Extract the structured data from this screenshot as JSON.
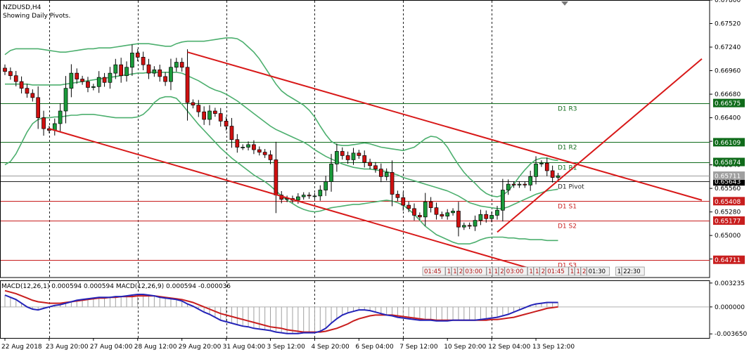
{
  "chart_data": {
    "type": "candlestick",
    "symbol_label": "NZDUSD,H4",
    "subtitle": "Showing Daily Pivots.",
    "price_axis": {
      "range": [
        0.645,
        0.678
      ],
      "ticks": [
        "0.67800",
        "0.67520",
        "0.67240",
        "0.66960",
        "0.66680",
        "0.66400",
        "0.66120",
        "0.65840",
        "0.65560",
        "0.65280",
        "0.65000",
        "0.64720"
      ],
      "tick_values": [
        0.678,
        0.6752,
        0.6724,
        0.6696,
        0.6668,
        0.664,
        0.6612,
        0.6584,
        0.6556,
        0.6528,
        0.65,
        0.6472
      ]
    },
    "time_axis": {
      "labels": [
        "22 Aug 2018",
        "23 Aug 20:00",
        "27 Aug 04:00",
        "28 Aug 12:00",
        "29 Aug 20:00",
        "31 Aug 04:00",
        "3 Sep 12:00",
        "4 Sep 20:00",
        "6 Sep 04:00",
        "7 Sep 12:00",
        "10 Sep 20:00",
        "12 Sep 04:00",
        "13 Sep 12:00"
      ],
      "bar_index": [
        0,
        8,
        16,
        24,
        32,
        40,
        48,
        56,
        64,
        72,
        80,
        88,
        96
      ]
    },
    "pivots": [
      {
        "name": "D1 R3",
        "value": 0.66575,
        "label": "0.66575",
        "kind": "resistance"
      },
      {
        "name": "D1 R2",
        "value": 0.66109,
        "label": "0.66109",
        "kind": "resistance"
      },
      {
        "name": "D1 R1",
        "value": 0.65874,
        "label": "0.65874",
        "kind": "resistance"
      },
      {
        "name": "D1 Pivot",
        "value": 0.65643,
        "label": "0.65643",
        "kind": "pivot"
      },
      {
        "name": "D1 S1",
        "value": 0.65408,
        "label": "0.65408",
        "kind": "support"
      },
      {
        "name": "D1 S2",
        "value": 0.65177,
        "label": "0.65177",
        "kind": "support"
      },
      {
        "name": "D1 S3",
        "value": 0.64711,
        "label": "0.64711",
        "kind": "support"
      }
    ],
    "current_price_label": "0.65711",
    "current_price": 0.65711,
    "close": [
      0.6695,
      0.669,
      0.6683,
      0.6675,
      0.6669,
      0.6664,
      0.664,
      0.6627,
      0.6625,
      0.6633,
      0.6648,
      0.6675,
      0.6693,
      0.6686,
      0.6683,
      0.6676,
      0.6677,
      0.6688,
      0.6682,
      0.6693,
      0.6703,
      0.669,
      0.67,
      0.6717,
      0.6712,
      0.6703,
      0.6693,
      0.6697,
      0.6689,
      0.6683,
      0.67,
      0.6706,
      0.67,
      0.6658,
      0.6655,
      0.6647,
      0.6638,
      0.6648,
      0.6645,
      0.6636,
      0.663,
      0.6614,
      0.6605,
      0.6605,
      0.6608,
      0.6602,
      0.6599,
      0.6596,
      0.659,
      0.6548,
      0.6543,
      0.6544,
      0.6542,
      0.6546,
      0.6548,
      0.6547,
      0.6547,
      0.6554,
      0.6564,
      0.6585,
      0.66,
      0.6595,
      0.659,
      0.6598,
      0.6595,
      0.6587,
      0.6583,
      0.6579,
      0.657,
      0.6575,
      0.6549,
      0.6545,
      0.6536,
      0.6532,
      0.6524,
      0.6522,
      0.654,
      0.6533,
      0.6525,
      0.6523,
      0.6527,
      0.6529,
      0.651,
      0.6512,
      0.6511,
      0.6518,
      0.6525,
      0.652,
      0.6524,
      0.653,
      0.6554,
      0.6561,
      0.656,
      0.6561,
      0.656,
      0.657,
      0.6585,
      0.6586,
      0.6577,
      0.6569,
      0.6571
    ],
    "bollinger": {
      "upper": [
        0.6715,
        0.672,
        0.6722,
        0.6722,
        0.6722,
        0.6722,
        0.6722,
        0.6721,
        0.672,
        0.6719,
        0.6718,
        0.6718,
        0.6719,
        0.672,
        0.6721,
        0.6722,
        0.6722,
        0.6723,
        0.6723,
        0.6723,
        0.6724,
        0.6725,
        0.6726,
        0.6727,
        0.6728,
        0.6728,
        0.6728,
        0.6727,
        0.6726,
        0.6725,
        0.6725,
        0.6728,
        0.673,
        0.6731,
        0.6731,
        0.6731,
        0.6731,
        0.6732,
        0.6733,
        0.6734,
        0.6735,
        0.6735,
        0.6734,
        0.673,
        0.6724,
        0.6718,
        0.671,
        0.67,
        0.669,
        0.668,
        0.6672,
        0.6667,
        0.6663,
        0.6659,
        0.6655,
        0.6649,
        0.6641,
        0.663,
        0.662,
        0.6612,
        0.6608,
        0.6607,
        0.6607,
        0.6608,
        0.6609,
        0.661,
        0.6609,
        0.6607,
        0.6605,
        0.6604,
        0.6603,
        0.6602,
        0.6601,
        0.6603,
        0.6605,
        0.661,
        0.6615,
        0.6618,
        0.6617,
        0.6613,
        0.6605,
        0.6594,
        0.6584,
        0.6575,
        0.6568,
        0.6562,
        0.6555,
        0.655,
        0.6547,
        0.6546,
        0.6548,
        0.6553,
        0.6561,
        0.657,
        0.6578,
        0.6585,
        0.659,
        0.6592,
        0.6592,
        0.659,
        0.6589
      ],
      "middle": [
        0.668,
        0.668,
        0.668,
        0.668,
        0.668,
        0.6679,
        0.6679,
        0.6679,
        0.6679,
        0.6679,
        0.6679,
        0.668,
        0.6681,
        0.6682,
        0.6683,
        0.6684,
        0.6685,
        0.6686,
        0.6687,
        0.6688,
        0.6689,
        0.669,
        0.6691,
        0.6692,
        0.6693,
        0.6693,
        0.6694,
        0.6694,
        0.6694,
        0.6694,
        0.6694,
        0.6694,
        0.6693,
        0.669,
        0.6687,
        0.6684,
        0.668,
        0.6676,
        0.6673,
        0.6671,
        0.6668,
        0.6664,
        0.666,
        0.6655,
        0.665,
        0.6645,
        0.664,
        0.6635,
        0.663,
        0.6626,
        0.6623,
        0.662,
        0.6617,
        0.6614,
        0.6611,
        0.6607,
        0.6602,
        0.6598,
        0.6594,
        0.6591,
        0.6588,
        0.6585,
        0.6583,
        0.6581,
        0.658,
        0.6579,
        0.6579,
        0.6578,
        0.6577,
        0.6576,
        0.6574,
        0.6572,
        0.6569,
        0.6567,
        0.6565,
        0.6563,
        0.6561,
        0.6559,
        0.6557,
        0.6555,
        0.6553,
        0.655,
        0.6547,
        0.6543,
        0.6539,
        0.6537,
        0.6535,
        0.6534,
        0.6533,
        0.6532,
        0.6532,
        0.6534,
        0.6537,
        0.654,
        0.6543,
        0.6546,
        0.6549,
        0.6551,
        0.6553,
        0.6554,
        0.6555
      ],
      "lower": [
        0.6584,
        0.6588,
        0.6597,
        0.661,
        0.6623,
        0.6633,
        0.6638,
        0.664,
        0.664,
        0.6641,
        0.6641,
        0.6642,
        0.6643,
        0.6643,
        0.6644,
        0.6644,
        0.6644,
        0.6643,
        0.6642,
        0.6641,
        0.664,
        0.664,
        0.664,
        0.664,
        0.6641,
        0.6644,
        0.665,
        0.6658,
        0.6663,
        0.6665,
        0.6665,
        0.6663,
        0.6656,
        0.6648,
        0.664,
        0.6632,
        0.6625,
        0.6618,
        0.6611,
        0.6604,
        0.6598,
        0.6592,
        0.6587,
        0.6582,
        0.6577,
        0.6572,
        0.6568,
        0.6564,
        0.6559,
        0.6553,
        0.6547,
        0.6542,
        0.6538,
        0.6534,
        0.6531,
        0.6529,
        0.6528,
        0.6529,
        0.6531,
        0.6533,
        0.6534,
        0.6535,
        0.6536,
        0.6537,
        0.6537,
        0.6538,
        0.6539,
        0.654,
        0.6541,
        0.6542,
        0.6541,
        0.6539,
        0.6536,
        0.6531,
        0.6525,
        0.6518,
        0.6511,
        0.6506,
        0.6501,
        0.6498,
        0.6495,
        0.6492,
        0.649,
        0.649,
        0.649,
        0.6492,
        0.6495,
        0.6497,
        0.6498,
        0.6498,
        0.6498,
        0.6497,
        0.6497,
        0.6496,
        0.6496,
        0.6495,
        0.6495,
        0.6495,
        0.6494,
        0.6494,
        0.6494
      ]
    },
    "trendlines": [
      {
        "name": "upper-channel",
        "from": {
          "bar": 33,
          "price": 0.6718
        },
        "to": {
          "bar": 126,
          "price": 0.6542
        }
      },
      {
        "name": "lower-channel",
        "from": {
          "bar": 8,
          "price": 0.6627
        },
        "to": {
          "bar": 99,
          "price": 0.6453
        }
      },
      {
        "name": "rising-support",
        "from": {
          "bar": 89,
          "price": 0.6504
        },
        "to": {
          "bar": 126,
          "price": 0.671
        }
      }
    ],
    "macd": {
      "header": "MACD(12,26,1) 0.000594 0.000594 MACD(12,26,9) 0.000594 -0.000036",
      "ticks": [
        "0.003235",
        "0.000000",
        "-0.003650"
      ],
      "tick_values": [
        0.003235,
        0.0,
        -0.00365
      ],
      "range": [
        -0.0042,
        0.0036
      ],
      "macd_line": [
        0.0016,
        0.0013,
        0.001,
        0.0005,
        0.0,
        -0.0003,
        -0.0004,
        -0.0002,
        0.0,
        0.0002,
        0.0003,
        0.0005,
        0.0007,
        0.0009,
        0.001,
        0.0011,
        0.0012,
        0.0013,
        0.0013,
        0.0013,
        0.0014,
        0.0014,
        0.0015,
        0.0016,
        0.0017,
        0.0017,
        0.0016,
        0.0015,
        0.0013,
        0.0012,
        0.0011,
        0.001,
        0.0008,
        0.0004,
        0.0001,
        -0.0003,
        -0.0007,
        -0.001,
        -0.0014,
        -0.0018,
        -0.002,
        -0.0022,
        -0.0024,
        -0.0026,
        -0.0027,
        -0.0029,
        -0.003,
        -0.0031,
        -0.0032,
        -0.0034,
        -0.0035,
        -0.0036,
        -0.0036,
        -0.0036,
        -0.0035,
        -0.0035,
        -0.0035,
        -0.0033,
        -0.0029,
        -0.0022,
        -0.0016,
        -0.0011,
        -0.0008,
        -0.0006,
        -0.0004,
        -0.0004,
        -0.0005,
        -0.0007,
        -0.0009,
        -0.0011,
        -0.0012,
        -0.0014,
        -0.0015,
        -0.0016,
        -0.0017,
        -0.0018,
        -0.0018,
        -0.0018,
        -0.0019,
        -0.0019,
        -0.0019,
        -0.0018,
        -0.0018,
        -0.0018,
        -0.0018,
        -0.0018,
        -0.0017,
        -0.0016,
        -0.0015,
        -0.0014,
        -0.0012,
        -0.001,
        -0.0007,
        -0.0004,
        -0.0001,
        0.0002,
        0.0004,
        0.0005,
        0.0006,
        0.0006,
        0.0006
      ],
      "signal_line": [
        0.0022,
        0.002,
        0.0018,
        0.0015,
        0.0012,
        0.0009,
        0.0007,
        0.0006,
        0.0005,
        0.0005,
        0.0005,
        0.0006,
        0.0007,
        0.0008,
        0.0009,
        0.001,
        0.0011,
        0.0012,
        0.0012,
        0.0013,
        0.0013,
        0.0014,
        0.0014,
        0.0014,
        0.0015,
        0.0015,
        0.0015,
        0.0015,
        0.0014,
        0.0013,
        0.0012,
        0.0011,
        0.001,
        0.0008,
        0.0006,
        0.0003,
        0.0,
        -0.0003,
        -0.0006,
        -0.0009,
        -0.0011,
        -0.0013,
        -0.0015,
        -0.0017,
        -0.0019,
        -0.0021,
        -0.0023,
        -0.0025,
        -0.0027,
        -0.0028,
        -0.0029,
        -0.0031,
        -0.0032,
        -0.0033,
        -0.0034,
        -0.0034,
        -0.0034,
        -0.0034,
        -0.0033,
        -0.0031,
        -0.0029,
        -0.0026,
        -0.0023,
        -0.0019,
        -0.0016,
        -0.0014,
        -0.0012,
        -0.0011,
        -0.0011,
        -0.0011,
        -0.0011,
        -0.0012,
        -0.0013,
        -0.0014,
        -0.0015,
        -0.0016,
        -0.0017,
        -0.0017,
        -0.0018,
        -0.0018,
        -0.0018,
        -0.0018,
        -0.0018,
        -0.0018,
        -0.0018,
        -0.0018,
        -0.0018,
        -0.0018,
        -0.0017,
        -0.0017,
        -0.0016,
        -0.0015,
        -0.0014,
        -0.0012,
        -0.001,
        -0.0008,
        -0.0006,
        -0.0004,
        -0.0002,
        -0.0001,
        -0.0
      ]
    },
    "session_labels": [
      "01:45",
      "1",
      "1",
      "2",
      "03:00",
      "1",
      "1",
      "2",
      "03:00",
      "1",
      "1",
      "2",
      "01:45",
      "1",
      "1",
      "2",
      "01:30",
      "1",
      "22:30"
    ],
    "colors": {
      "bull": "#1a9a3a",
      "bear": "#d01010",
      "bollinger": "#4caf6e",
      "resistance": "#0f6b1a",
      "support": "#c81e1e",
      "pivot": "#222222",
      "trend": "#d81818",
      "macd": "#2424b8",
      "signal": "#c81e1e",
      "grid": "#222222"
    }
  }
}
